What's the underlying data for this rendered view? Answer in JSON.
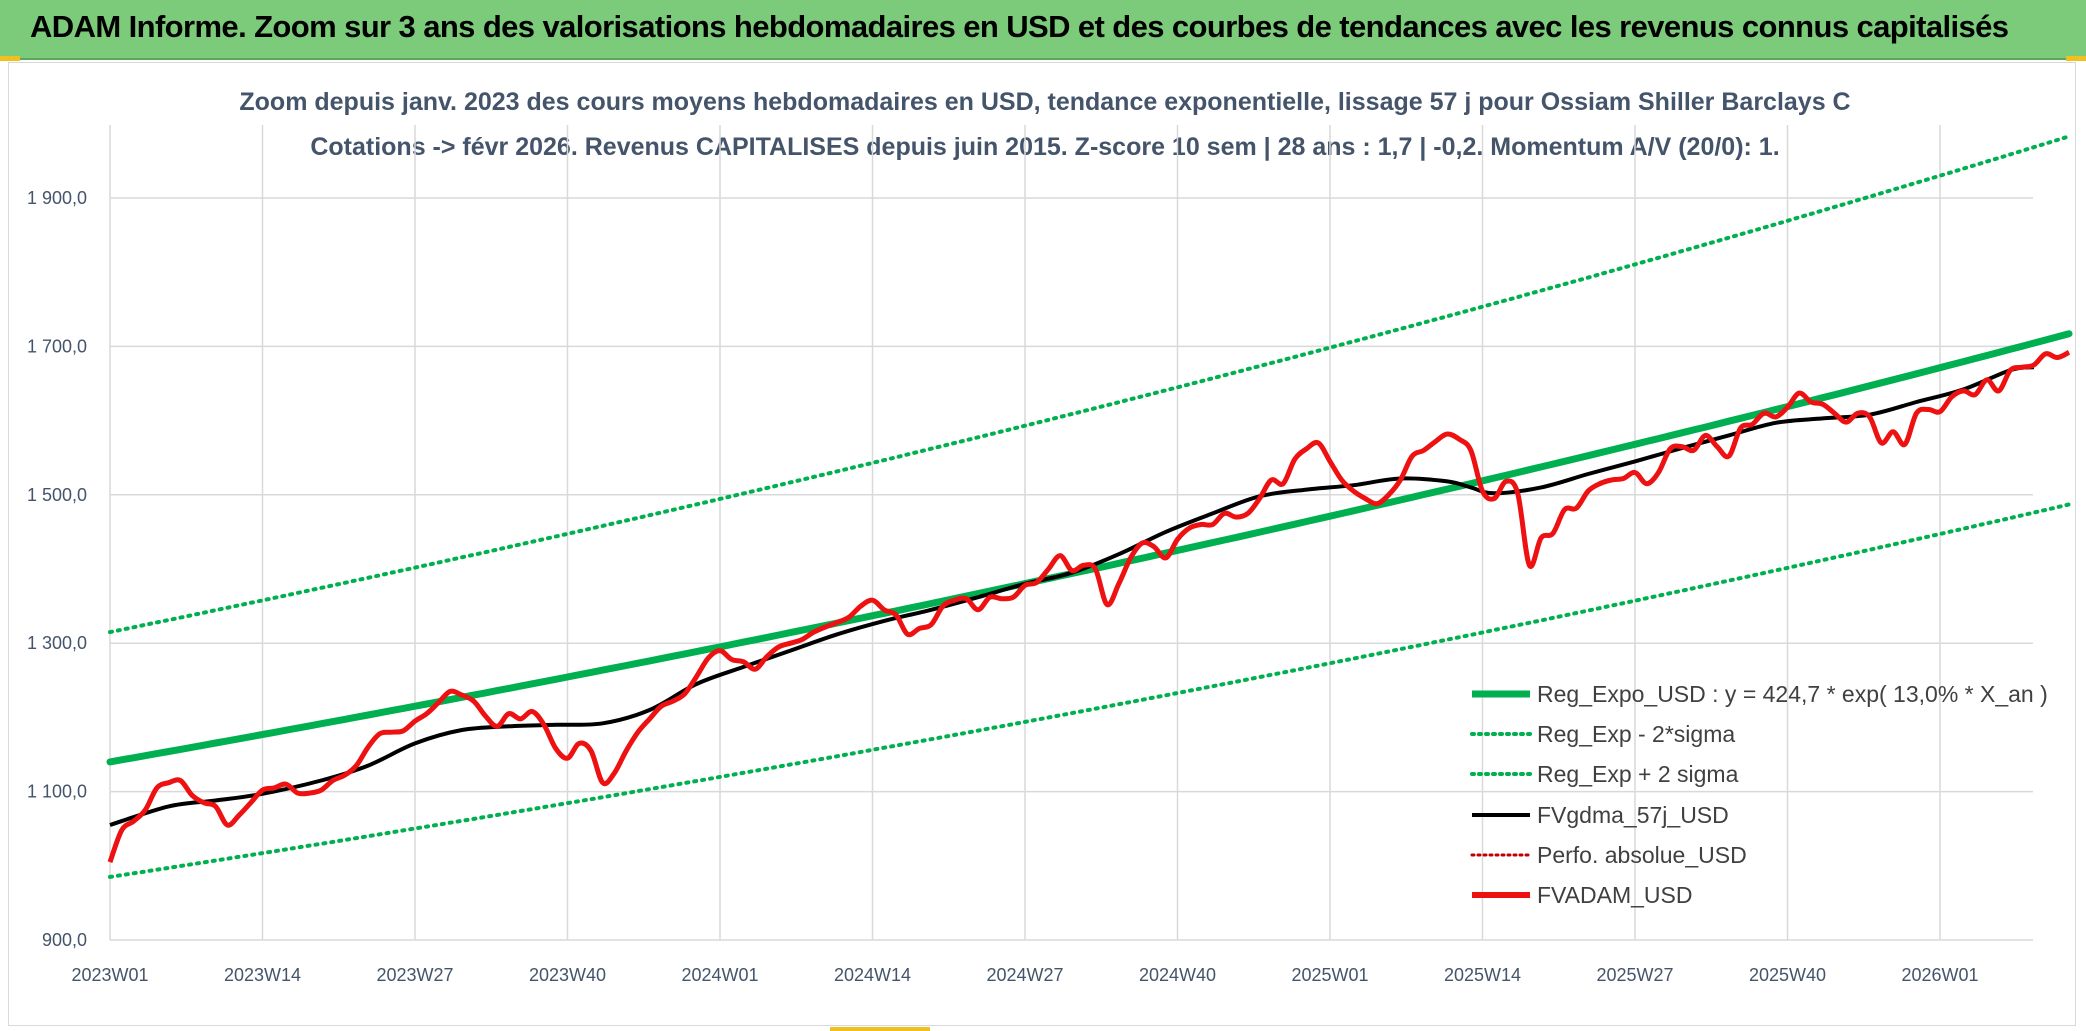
{
  "banner": {
    "title": "ADAM Informe. Zoom sur 3 ans des valorisations hebdomadaires en USD et des courbes de tendances avec les revenus connus capitalisés"
  },
  "colors": {
    "banner_bg": "#7ccb7a",
    "regression": "#00b050",
    "sigma_bands": "#00b050",
    "moving_average": "#000000",
    "perfo": "#c00000",
    "price": "#ee1111",
    "grid": "#d9d9d9"
  },
  "chart_data": {
    "type": "line",
    "title_line1": "Zoom depuis janv. 2023 des cours moyens hebdomadaires en USD, tendance exponentielle, lissage 57 j pour Ossiam Shiller Barclays C",
    "title_line2": "Cotations -> févr 2026. Revenus CAPITALISES depuis juin 2015. Z-score 10 sem | 28 ans : 1,7 | -0,2. Momentum A/V (20/0): 1.",
    "y_ticks": [
      "900,0",
      "1 100,0",
      "1 300,0",
      "1 500,0",
      "1 700,0",
      "1 900,0"
    ],
    "y_tick_values": [
      900,
      1100,
      1300,
      1500,
      1700,
      1900
    ],
    "ylim": [
      900,
      2000
    ],
    "x_tick_labels": [
      "2023W01",
      "2023W14",
      "2023W27",
      "2023W40",
      "2024W01",
      "2024W14",
      "2024W27",
      "2024W40",
      "2025W01",
      "2025W14",
      "2025W27",
      "2025W40",
      "2026W01"
    ],
    "x_tick_weeks": [
      0,
      13,
      26,
      39,
      52,
      65,
      78,
      91,
      104,
      117,
      130,
      143,
      156
    ],
    "x_range_weeks": [
      0,
      164
    ],
    "grid": true,
    "legend_position": "bottom-right",
    "regression": {
      "name": "Reg_Expo_USD : y = 424,7 * exp( 13,0% *  X_an )",
      "start": 1140,
      "end": 1717
    },
    "band_low": {
      "name": "Reg_Exp - 2*sigma",
      "start": 985,
      "end": 1487
    },
    "band_high": {
      "name": "Reg_Exp + 2 sigma",
      "start": 1315,
      "end": 1983
    },
    "moving_average": {
      "name": "FVgdma_57j_USD",
      "points": [
        [
          0,
          1055
        ],
        [
          5,
          1080
        ],
        [
          9,
          1088
        ],
        [
          13,
          1097
        ],
        [
          18,
          1115
        ],
        [
          22,
          1135
        ],
        [
          26,
          1165
        ],
        [
          30,
          1183
        ],
        [
          34,
          1188
        ],
        [
          38,
          1190
        ],
        [
          42,
          1192
        ],
        [
          46,
          1210
        ],
        [
          50,
          1245
        ],
        [
          54,
          1268
        ],
        [
          58,
          1290
        ],
        [
          62,
          1312
        ],
        [
          66,
          1330
        ],
        [
          70,
          1345
        ],
        [
          74,
          1362
        ],
        [
          78,
          1380
        ],
        [
          82,
          1395
        ],
        [
          86,
          1420
        ],
        [
          90,
          1450
        ],
        [
          94,
          1475
        ],
        [
          98,
          1498
        ],
        [
          102,
          1507
        ],
        [
          106,
          1513
        ],
        [
          110,
          1522
        ],
        [
          114,
          1518
        ],
        [
          116,
          1510
        ],
        [
          118,
          1502
        ],
        [
          122,
          1510
        ],
        [
          126,
          1528
        ],
        [
          130,
          1545
        ],
        [
          134,
          1563
        ],
        [
          138,
          1580
        ],
        [
          142,
          1597
        ],
        [
          146,
          1603
        ],
        [
          150,
          1608
        ],
        [
          154,
          1625
        ],
        [
          158,
          1642
        ],
        [
          162,
          1668
        ],
        [
          164,
          1672
        ]
      ]
    },
    "perfo": {
      "name": "Perfo. absolue_USD",
      "points": []
    },
    "price": {
      "name": "FVADAM_USD",
      "points": [
        [
          0,
          1005
        ],
        [
          1,
          1048
        ],
        [
          2,
          1060
        ],
        [
          3,
          1075
        ],
        [
          4,
          1105
        ],
        [
          5,
          1112
        ],
        [
          6,
          1115
        ],
        [
          7,
          1095
        ],
        [
          8,
          1085
        ],
        [
          9,
          1080
        ],
        [
          10,
          1055
        ],
        [
          11,
          1068
        ],
        [
          12,
          1085
        ],
        [
          13,
          1102
        ],
        [
          14,
          1105
        ],
        [
          15,
          1110
        ],
        [
          16,
          1098
        ],
        [
          17,
          1098
        ],
        [
          18,
          1102
        ],
        [
          19,
          1115
        ],
        [
          20,
          1122
        ],
        [
          21,
          1135
        ],
        [
          22,
          1160
        ],
        [
          23,
          1178
        ],
        [
          24,
          1180
        ],
        [
          25,
          1182
        ],
        [
          26,
          1195
        ],
        [
          27,
          1205
        ],
        [
          28,
          1220
        ],
        [
          29,
          1235
        ],
        [
          30,
          1230
        ],
        [
          31,
          1222
        ],
        [
          32,
          1202
        ],
        [
          33,
          1188
        ],
        [
          34,
          1205
        ],
        [
          35,
          1198
        ],
        [
          36,
          1208
        ],
        [
          37,
          1190
        ],
        [
          38,
          1158
        ],
        [
          39,
          1145
        ],
        [
          40,
          1165
        ],
        [
          41,
          1155
        ],
        [
          42,
          1112
        ],
        [
          43,
          1125
        ],
        [
          44,
          1155
        ],
        [
          45,
          1180
        ],
        [
          46,
          1198
        ],
        [
          47,
          1215
        ],
        [
          48,
          1222
        ],
        [
          49,
          1232
        ],
        [
          50,
          1255
        ],
        [
          51,
          1280
        ],
        [
          52,
          1290
        ],
        [
          53,
          1278
        ],
        [
          54,
          1275
        ],
        [
          55,
          1265
        ],
        [
          56,
          1282
        ],
        [
          57,
          1295
        ],
        [
          58,
          1300
        ],
        [
          59,
          1305
        ],
        [
          60,
          1315
        ],
        [
          61,
          1322
        ],
        [
          62,
          1328
        ],
        [
          63,
          1335
        ],
        [
          64,
          1350
        ],
        [
          65,
          1358
        ],
        [
          66,
          1345
        ],
        [
          67,
          1338
        ],
        [
          68,
          1312
        ],
        [
          69,
          1320
        ],
        [
          70,
          1325
        ],
        [
          71,
          1350
        ],
        [
          72,
          1358
        ],
        [
          73,
          1360
        ],
        [
          74,
          1345
        ],
        [
          75,
          1362
        ],
        [
          76,
          1360
        ],
        [
          77,
          1362
        ],
        [
          78,
          1378
        ],
        [
          79,
          1382
        ],
        [
          80,
          1400
        ],
        [
          81,
          1418
        ],
        [
          82,
          1398
        ],
        [
          83,
          1405
        ],
        [
          84,
          1400
        ],
        [
          85,
          1352
        ],
        [
          86,
          1380
        ],
        [
          87,
          1415
        ],
        [
          88,
          1435
        ],
        [
          89,
          1430
        ],
        [
          90,
          1415
        ],
        [
          91,
          1440
        ],
        [
          92,
          1455
        ],
        [
          93,
          1460
        ],
        [
          94,
          1460
        ],
        [
          95,
          1475
        ],
        [
          96,
          1470
        ],
        [
          97,
          1475
        ],
        [
          98,
          1495
        ],
        [
          99,
          1520
        ],
        [
          100,
          1515
        ],
        [
          101,
          1548
        ],
        [
          102,
          1562
        ],
        [
          103,
          1570
        ],
        [
          104,
          1545
        ],
        [
          105,
          1520
        ],
        [
          106,
          1505
        ],
        [
          107,
          1495
        ],
        [
          108,
          1488
        ],
        [
          109,
          1500
        ],
        [
          110,
          1520
        ],
        [
          111,
          1552
        ],
        [
          112,
          1560
        ],
        [
          113,
          1572
        ],
        [
          114,
          1582
        ],
        [
          115,
          1575
        ],
        [
          116,
          1560
        ],
        [
          117,
          1505
        ],
        [
          118,
          1495
        ],
        [
          119,
          1518
        ],
        [
          120,
          1502
        ],
        [
          121,
          1405
        ],
        [
          122,
          1442
        ],
        [
          123,
          1448
        ],
        [
          124,
          1480
        ],
        [
          125,
          1482
        ],
        [
          126,
          1505
        ],
        [
          127,
          1515
        ],
        [
          128,
          1520
        ],
        [
          129,
          1522
        ],
        [
          130,
          1530
        ],
        [
          131,
          1515
        ],
        [
          132,
          1530
        ],
        [
          133,
          1562
        ],
        [
          134,
          1565
        ],
        [
          135,
          1560
        ],
        [
          136,
          1580
        ],
        [
          137,
          1565
        ],
        [
          138,
          1552
        ],
        [
          139,
          1590
        ],
        [
          140,
          1595
        ],
        [
          141,
          1610
        ],
        [
          142,
          1605
        ],
        [
          143,
          1618
        ],
        [
          144,
          1637
        ],
        [
          145,
          1625
        ],
        [
          146,
          1622
        ],
        [
          147,
          1610
        ],
        [
          148,
          1598
        ],
        [
          149,
          1610
        ],
        [
          150,
          1605
        ],
        [
          151,
          1570
        ],
        [
          152,
          1585
        ],
        [
          153,
          1568
        ],
        [
          154,
          1610
        ],
        [
          155,
          1615
        ],
        [
          156,
          1612
        ],
        [
          157,
          1632
        ],
        [
          158,
          1640
        ],
        [
          159,
          1635
        ],
        [
          160,
          1655
        ],
        [
          161,
          1640
        ],
        [
          162,
          1668
        ],
        [
          163,
          1672
        ],
        [
          164,
          1675
        ],
        [
          165,
          1690
        ],
        [
          166,
          1685
        ],
        [
          167,
          1692
        ]
      ]
    }
  }
}
